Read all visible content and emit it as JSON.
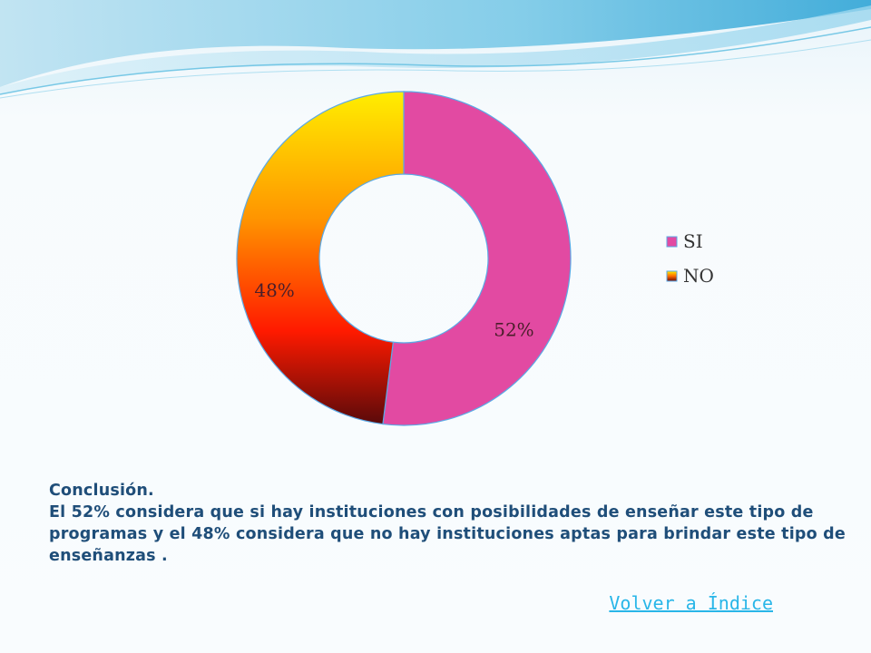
{
  "chart_data": {
    "type": "pie",
    "variant": "donut",
    "categories": [
      "SI",
      "NO"
    ],
    "values": [
      52,
      48
    ],
    "data_labels": [
      "52%",
      "48%"
    ],
    "legend_position": "right",
    "colors": {
      "SI": "#e24aa2",
      "NO": [
        "#ffee00",
        "#ff9500",
        "#ff1a00",
        "#5a0a0a"
      ]
    }
  },
  "conclusion": {
    "heading": "Conclusión.",
    "text": "El 52% considera que si hay instituciones con posibilidades de enseñar este tipo de programas y el 48% considera que no hay instituciones aptas para brindar este tipo de enseñanzas ."
  },
  "back_link": {
    "label": "Volver a Índice"
  },
  "theme": {
    "text_color": "#1f4e79",
    "link_color": "#29b6e8"
  }
}
